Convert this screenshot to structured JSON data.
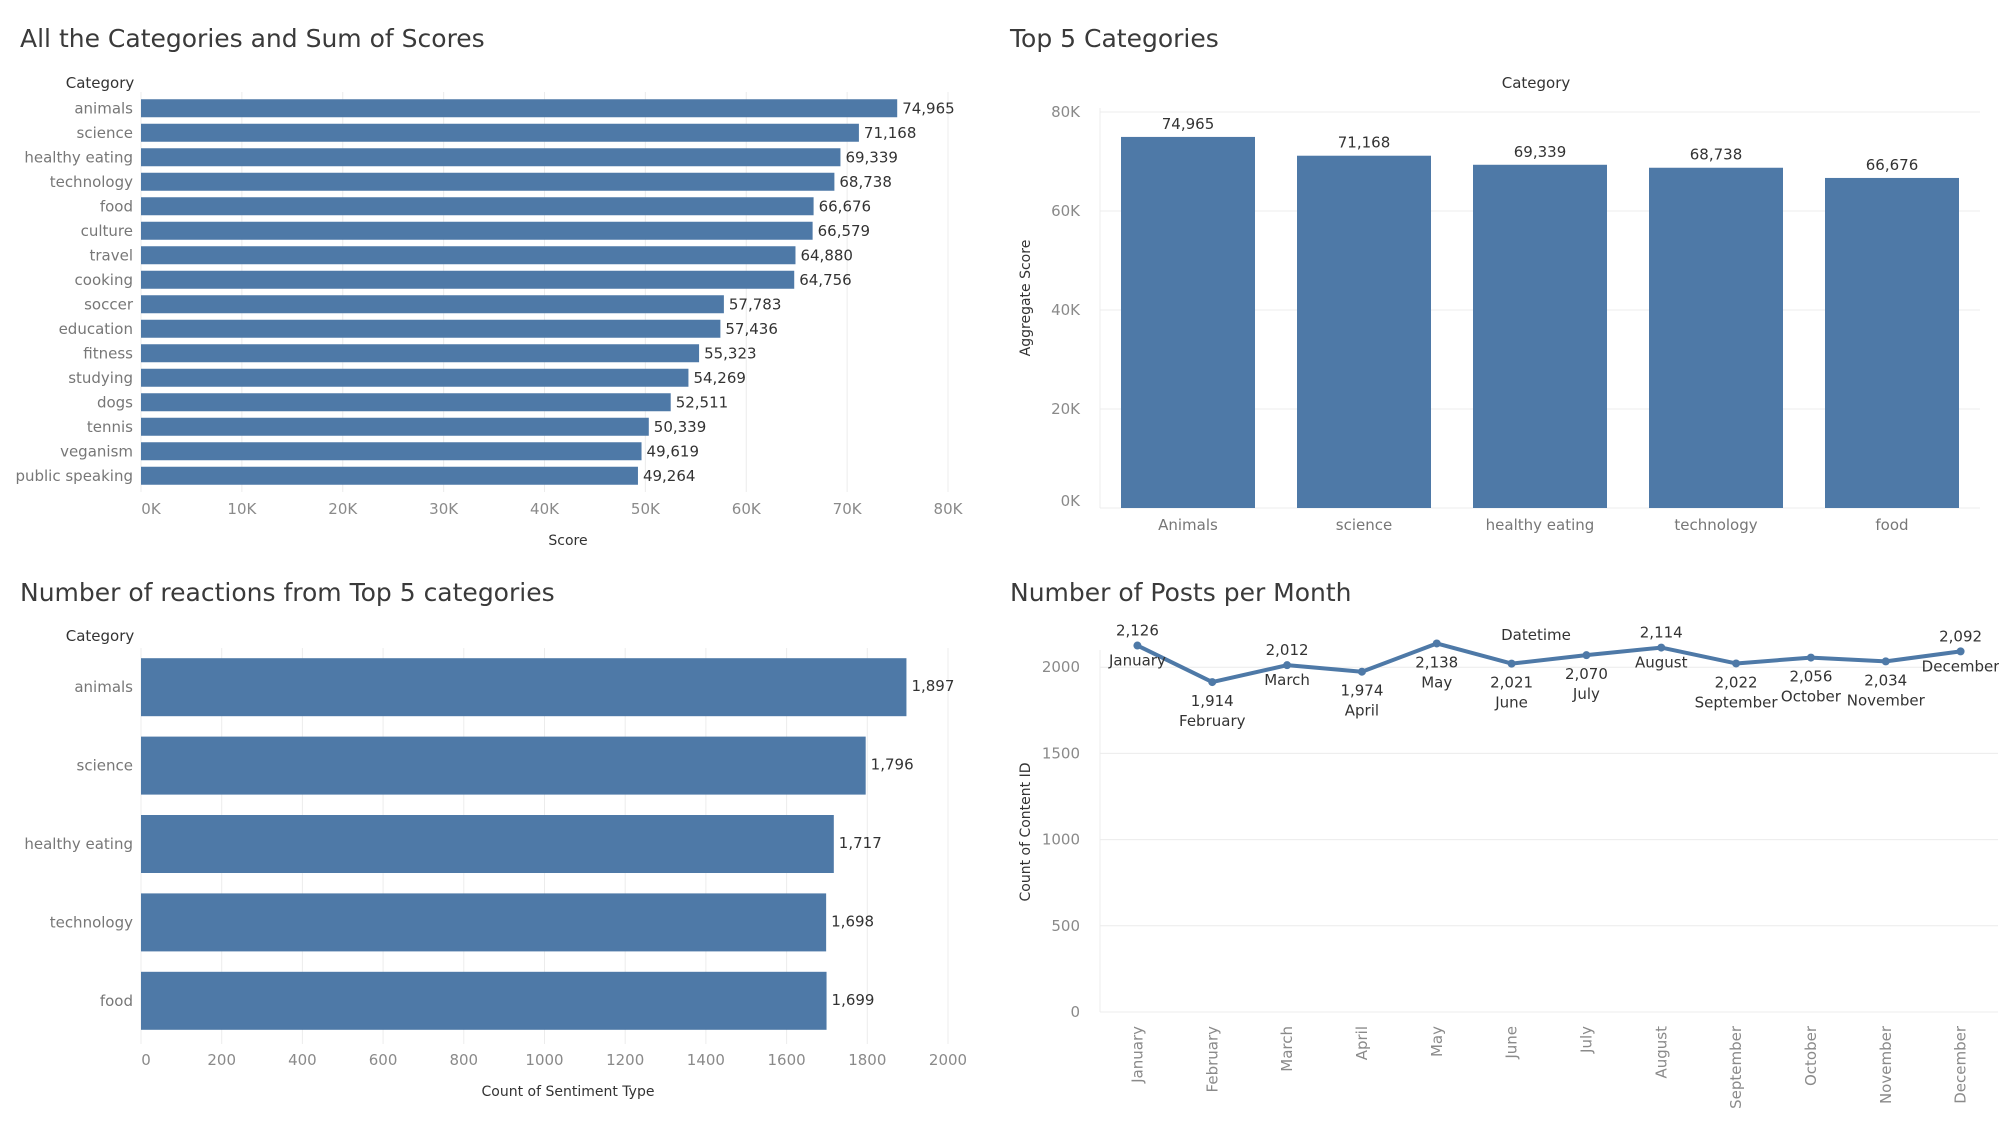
{
  "colors": {
    "bar": "#4e79a7",
    "grid": "#ececec",
    "text": "#333333",
    "tick": "#8a8a8a"
  },
  "chart_data": [
    {
      "type": "bar",
      "orientation": "horizontal",
      "title": "All the Categories and Sum of Scores",
      "category_header": "Category",
      "xlabel": "Score",
      "xlim": [
        0,
        80000
      ],
      "ticks": [
        0,
        10000,
        20000,
        30000,
        40000,
        50000,
        60000,
        70000,
        80000
      ],
      "tick_labels": [
        "0K",
        "10K",
        "20K",
        "30K",
        "40K",
        "50K",
        "60K",
        "70K",
        "80K"
      ],
      "categories": [
        "animals",
        "science",
        "healthy eating",
        "technology",
        "food",
        "culture",
        "travel",
        "cooking",
        "soccer",
        "education",
        "fitness",
        "studying",
        "dogs",
        "tennis",
        "veganism",
        "public speaking"
      ],
      "values": [
        74965,
        71168,
        69339,
        68738,
        66676,
        66579,
        64880,
        64756,
        57783,
        57436,
        55323,
        54269,
        52511,
        50339,
        49619,
        49264
      ],
      "value_labels": [
        "74,965",
        "71,168",
        "69,339",
        "68,738",
        "66,676",
        "66,579",
        "64,880",
        "64,756",
        "57,783",
        "57,436",
        "55,323",
        "54,269",
        "52,511",
        "50,339",
        "49,619",
        "49,264"
      ]
    },
    {
      "type": "bar",
      "orientation": "vertical",
      "title": "Top 5 Categories",
      "category_header": "Category",
      "ylabel": "Aggregate Score",
      "ylim": [
        0,
        80000
      ],
      "ticks": [
        0,
        20000,
        40000,
        60000,
        80000
      ],
      "tick_labels": [
        "0K",
        "20K",
        "40K",
        "60K",
        "80K"
      ],
      "categories": [
        "Animals",
        "science",
        "healthy eating",
        "technology",
        "food"
      ],
      "values": [
        74965,
        71168,
        69339,
        68738,
        66676
      ],
      "value_labels": [
        "74,965",
        "71,168",
        "69,339",
        "68,738",
        "66,676"
      ]
    },
    {
      "type": "bar",
      "orientation": "horizontal",
      "title": "Number of reactions from Top 5 categories",
      "category_header": "Category",
      "xlabel": "Count of Sentiment Type",
      "xlim": [
        0,
        2000
      ],
      "ticks": [
        0,
        200,
        400,
        600,
        800,
        1000,
        1200,
        1400,
        1600,
        1800,
        2000
      ],
      "tick_labels": [
        "0",
        "200",
        "400",
        "600",
        "800",
        "1000",
        "1200",
        "1400",
        "1600",
        "1800",
        "2000"
      ],
      "categories": [
        "animals",
        "science",
        "healthy eating",
        "technology",
        "food"
      ],
      "values": [
        1897,
        1796,
        1717,
        1698,
        1699
      ],
      "value_labels": [
        "1,897",
        "1,796",
        "1,717",
        "1,698",
        "1,699"
      ]
    },
    {
      "type": "line",
      "title": "Number of Posts per Month",
      "category_header": "Datetime",
      "ylabel": "Count of Content ID",
      "ylim": [
        0,
        2100
      ],
      "ticks": [
        0,
        500,
        1000,
        1500,
        2000
      ],
      "tick_labels": [
        "0",
        "500",
        "1000",
        "1500",
        "2000"
      ],
      "categories": [
        "January",
        "February",
        "March",
        "April",
        "May",
        "June",
        "July",
        "August",
        "September",
        "October",
        "November",
        "December"
      ],
      "values": [
        2126,
        1914,
        2012,
        1974,
        2138,
        2021,
        2070,
        2114,
        2022,
        2056,
        2034,
        2092
      ],
      "value_labels": [
        "2,126",
        "1,914",
        "2,012",
        "1,974",
        "2,138",
        "2,021",
        "2,070",
        "2,114",
        "2,022",
        "2,056",
        "2,034",
        "2,092"
      ],
      "point_label_position": [
        "above",
        "below",
        "above",
        "below",
        "below",
        "below",
        "below",
        "above",
        "below",
        "below",
        "below",
        "above"
      ]
    }
  ]
}
